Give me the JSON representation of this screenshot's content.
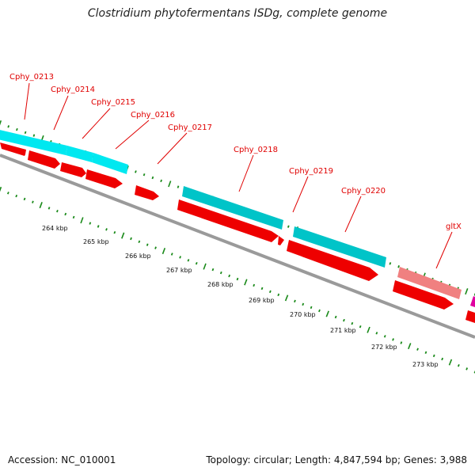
{
  "title": "Clostridium phytofermentans ISDg, complete genome",
  "footer": {
    "accession": "Accession: NC_010001",
    "summary": "Topology: circular; Length: 4,847,594 bp; Genes: 3,988"
  },
  "colors": {
    "cds": "#ee0000",
    "gene_cyan": "#00e8f0",
    "gene_teal": "#00c4c8",
    "gene_rna": "#f08080",
    "gene_magenta": "#e000a0",
    "tick": "#1a8a1a",
    "backbone": "#808080"
  },
  "gene_labels": [
    "Cphy_0213",
    "Cphy_0214",
    "Cphy_0215",
    "Cphy_0216",
    "Cphy_0217",
    "Cphy_0218",
    "Cphy_0219",
    "Cphy_0220",
    "gltX"
  ],
  "kbp_labels": [
    "264 kbp",
    "265 kbp",
    "266 kbp",
    "267 kbp",
    "268 kbp",
    "269 kbp",
    "270 kbp",
    "271 kbp",
    "272 kbp",
    "273 kbp"
  ]
}
